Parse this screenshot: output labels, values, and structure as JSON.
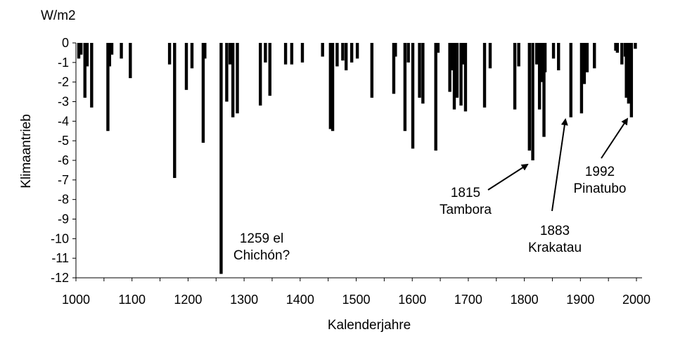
{
  "chart_data": {
    "type": "bar",
    "unit_label": "W/m2",
    "xlabel": "Kalenderjahre",
    "ylabel": "Klimaantrieb",
    "xlim": [
      1000,
      2010
    ],
    "ylim": [
      -12,
      0
    ],
    "xticks": [
      "1000",
      "1100",
      "1200",
      "1300",
      "1400",
      "1500",
      "1600",
      "1700",
      "1800",
      "1900",
      "2000"
    ],
    "yticks": [
      "0",
      "-1",
      "-2",
      "-3",
      "-4",
      "-5",
      "-6",
      "-7",
      "-8",
      "-9",
      "-10",
      "-11",
      "-12"
    ],
    "grid": false,
    "series": [
      {
        "x": [
          1005,
          1009,
          1016,
          1020,
          1028,
          1057,
          1060,
          1064,
          1081,
          1097,
          1167,
          1176,
          1197,
          1207,
          1227,
          1230,
          1259,
          1269,
          1275,
          1280,
          1288,
          1329,
          1338,
          1346,
          1374,
          1385,
          1404,
          1440,
          1454,
          1458,
          1466,
          1476,
          1482,
          1492,
          1502,
          1528,
          1567,
          1570,
          1587,
          1593,
          1601,
          1613,
          1619,
          1642,
          1646,
          1667,
          1671,
          1675,
          1680,
          1687,
          1691,
          1695,
          1729,
          1739,
          1783,
          1790,
          1809,
          1815,
          1822,
          1827,
          1832,
          1835,
          1837,
          1852,
          1861,
          1883,
          1902,
          1907,
          1912,
          1925,
          1963,
          1966,
          1974,
          1980,
          1982,
          1986,
          1991,
          1998
        ],
        "values": [
          -0.8,
          -0.6,
          -2.8,
          -1.2,
          -3.3,
          -4.5,
          -1.2,
          -0.6,
          -0.8,
          -1.8,
          -1.1,
          -6.9,
          -2.4,
          -1.3,
          -5.1,
          -0.8,
          -11.8,
          -3.0,
          -1.1,
          -3.8,
          -3.6,
          -3.2,
          -1.0,
          -2.7,
          -1.1,
          -1.1,
          -1.0,
          -0.7,
          -4.4,
          -4.5,
          -1.2,
          -0.9,
          -1.4,
          -1.0,
          -0.8,
          -2.8,
          -2.6,
          -0.7,
          -4.5,
          -1.0,
          -5.4,
          -2.8,
          -3.1,
          -5.5,
          -0.5,
          -2.5,
          -1.4,
          -3.4,
          -2.8,
          -3.2,
          -1.1,
          -3.5,
          -3.3,
          -1.3,
          -3.4,
          -1.2,
          -5.5,
          -6.0,
          -1.1,
          -3.4,
          -2.0,
          -4.8,
          -1.5,
          -0.8,
          -1.4,
          -3.8,
          -3.6,
          -2.1,
          -1.5,
          -1.3,
          -0.4,
          -0.5,
          -1.1,
          -0.7,
          -2.8,
          -3.1,
          -3.8,
          -0.3
        ]
      }
    ],
    "annotations": [
      {
        "lines": [
          "1259 el",
          "Chichón?"
        ],
        "year": 1259,
        "value": -11.8,
        "arrow": false
      },
      {
        "lines": [
          "1815",
          "Tambora"
        ],
        "year": 1815,
        "value": -6.0,
        "arrow": true
      },
      {
        "lines": [
          "1883",
          "Krakatau"
        ],
        "year": 1883,
        "value": -3.8,
        "arrow": true
      },
      {
        "lines": [
          "1992",
          "Pinatubo"
        ],
        "year": 1992,
        "value": -3.8,
        "arrow": true
      }
    ]
  }
}
